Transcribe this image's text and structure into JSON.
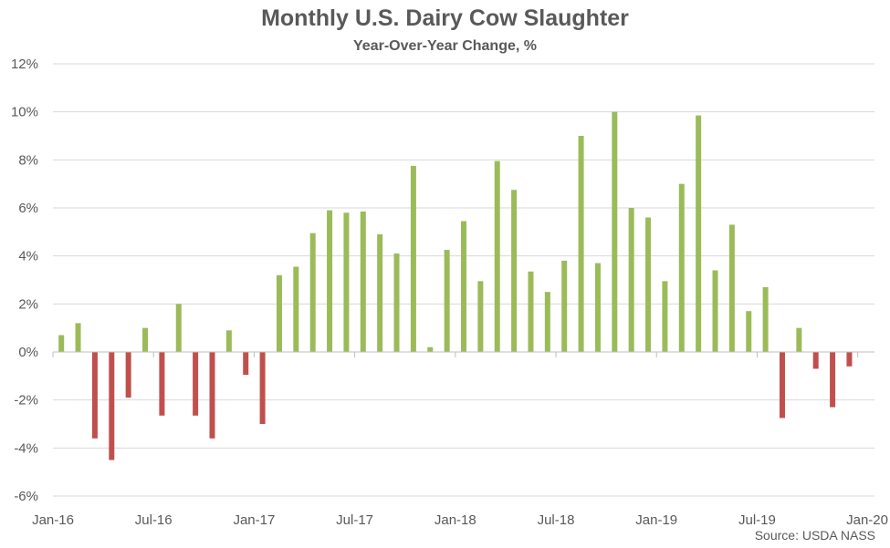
{
  "chart_data": {
    "type": "bar",
    "title": "Monthly U.S. Dairy Cow Slaughter",
    "subtitle": "Year-Over-Year Change, %",
    "source": "Source: USDA NASS",
    "xlabel": "",
    "ylabel": "",
    "ylim": [
      -6,
      12
    ],
    "y_ticks": [
      12,
      10,
      8,
      6,
      4,
      2,
      0,
      -2,
      -4,
      -6
    ],
    "y_tick_labels": [
      "12%",
      "10%",
      "8%",
      "6%",
      "4%",
      "2%",
      "0%",
      "-2%",
      "-4%",
      "-6%"
    ],
    "x_tick_labels": [
      "Jan-16",
      "Jul-16",
      "Jan-17",
      "Jul-17",
      "Jan-18",
      "Jul-18",
      "Jan-19",
      "Jul-19",
      "Jan-20"
    ],
    "grid": true,
    "categories": [
      "Jan-16",
      "Feb-16",
      "Mar-16",
      "Apr-16",
      "May-16",
      "Jun-16",
      "Jul-16",
      "Aug-16",
      "Sep-16",
      "Oct-16",
      "Nov-16",
      "Dec-16",
      "Jan-17",
      "Feb-17",
      "Mar-17",
      "Apr-17",
      "May-17",
      "Jun-17",
      "Jul-17",
      "Aug-17",
      "Sep-17",
      "Oct-17",
      "Nov-17",
      "Dec-17",
      "Jan-18",
      "Feb-18",
      "Mar-18",
      "Apr-18",
      "May-18",
      "Jun-18",
      "Jul-18",
      "Aug-18",
      "Sep-18",
      "Oct-18",
      "Nov-18",
      "Dec-18",
      "Jan-19",
      "Feb-19",
      "Mar-19",
      "Apr-19",
      "May-19",
      "Jun-19",
      "Jul-19",
      "Aug-19",
      "Sep-19",
      "Oct-19",
      "Nov-19",
      "Dec-19"
    ],
    "values": [
      0.7,
      1.2,
      -3.6,
      -4.5,
      -1.9,
      1.0,
      -2.65,
      2.0,
      -2.65,
      -3.6,
      0.9,
      -0.95,
      -3.0,
      3.2,
      3.55,
      4.95,
      5.9,
      5.8,
      5.85,
      4.9,
      4.1,
      7.75,
      0.2,
      4.25,
      5.45,
      2.95,
      7.95,
      6.75,
      3.35,
      2.5,
      3.8,
      9.0,
      3.7,
      10.0,
      6.0,
      5.6,
      2.95,
      7.0,
      9.85,
      3.4,
      5.3,
      1.7,
      2.7,
      -2.75,
      1.0,
      -0.7,
      -2.3,
      -0.6
    ],
    "colors": {
      "positive": "#9BBB59",
      "negative": "#C0504D",
      "grid": "#D9D9D9",
      "axis": "#BFBFBF",
      "text": "#595959"
    }
  }
}
